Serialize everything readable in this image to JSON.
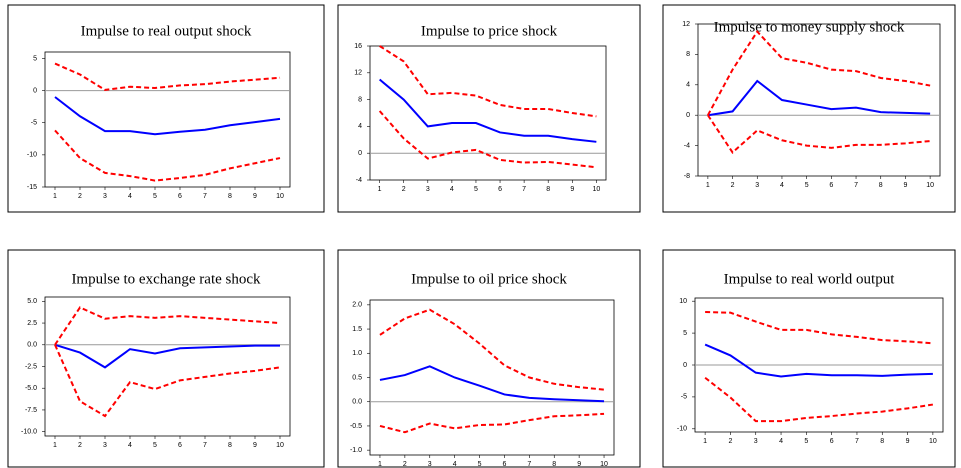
{
  "chart_data": [
    {
      "type": "line",
      "title": "Impulse to real output shock",
      "categories": [
        "1",
        "2",
        "3",
        "4",
        "5",
        "6",
        "7",
        "8",
        "9",
        "10"
      ],
      "ylim": [
        -15,
        6
      ],
      "yticks": [
        -15,
        -10,
        -5,
        0,
        5
      ],
      "series": [
        {
          "color": "#0000ff",
          "dash": false,
          "values": [
            -1,
            -4,
            -6.3,
            -6.3,
            -6.8,
            -6.4,
            -6.1,
            -5.4,
            -4.9,
            -4.4
          ]
        },
        {
          "color": "#ff0000",
          "dash": true,
          "values": [
            4.2,
            2.5,
            0.1,
            0.6,
            0.4,
            0.8,
            1.0,
            1.4,
            1.7,
            2.0
          ]
        },
        {
          "color": "#ff0000",
          "dash": true,
          "values": [
            -6.2,
            -10.5,
            -12.8,
            -13.3,
            -14,
            -13.6,
            -13.1,
            -12.1,
            -11.3,
            -10.5
          ]
        }
      ]
    },
    {
      "type": "line",
      "title": "Impulse to price shock",
      "categories": [
        "1",
        "2",
        "3",
        "4",
        "5",
        "6",
        "7",
        "8",
        "9",
        "10"
      ],
      "ylim": [
        -4,
        16
      ],
      "yticks": [
        -4,
        0,
        4,
        8,
        12,
        16
      ],
      "series": [
        {
          "color": "#0000ff",
          "dash": false,
          "values": [
            11,
            8,
            4,
            4.5,
            4.5,
            3.1,
            2.6,
            2.6,
            2.1,
            1.7
          ]
        },
        {
          "color": "#ff0000",
          "dash": true,
          "values": [
            16,
            13.7,
            8.8,
            9,
            8.6,
            7.2,
            6.6,
            6.6,
            6,
            5.5
          ]
        },
        {
          "color": "#ff0000",
          "dash": true,
          "values": [
            6.3,
            2.2,
            -0.8,
            0.1,
            0.5,
            -1,
            -1.4,
            -1.3,
            -1.7,
            -2.1
          ]
        }
      ]
    },
    {
      "type": "line",
      "title": "Impulse to money supply shock",
      "categories": [
        "1",
        "2",
        "3",
        "4",
        "5",
        "6",
        "7",
        "8",
        "9",
        "10"
      ],
      "ylim": [
        -8,
        12
      ],
      "yticks": [
        -8,
        -4,
        0,
        4,
        8,
        12
      ],
      "series": [
        {
          "color": "#0000ff",
          "dash": false,
          "values": [
            0,
            0.5,
            4.5,
            2,
            1.4,
            0.8,
            1,
            0.4,
            0.3,
            0.2
          ]
        },
        {
          "color": "#ff0000",
          "dash": true,
          "values": [
            0,
            6,
            11,
            7.5,
            6.9,
            6,
            5.8,
            4.9,
            4.5,
            3.9
          ]
        },
        {
          "color": "#ff0000",
          "dash": true,
          "values": [
            0,
            -4.9,
            -2,
            -3.3,
            -4,
            -4.3,
            -3.9,
            -3.9,
            -3.7,
            -3.4
          ]
        }
      ]
    },
    {
      "type": "line",
      "title": "Impulse to exchange rate shock",
      "categories": [
        "1",
        "2",
        "3",
        "4",
        "5",
        "6",
        "7",
        "8",
        "9",
        "10"
      ],
      "ylim": [
        -10.5,
        5.5
      ],
      "yticks": [
        {
          "value": -10,
          "label": "-10.0"
        },
        -7.5,
        {
          "value": -5,
          "label": "-5.0"
        },
        -2.5,
        {
          "value": 0,
          "label": "0.0"
        },
        2.5,
        {
          "value": 5,
          "label": "5.0"
        }
      ],
      "series": [
        {
          "color": "#0000ff",
          "dash": false,
          "values": [
            0,
            -0.9,
            -2.6,
            -0.5,
            -1,
            -0.4,
            -0.3,
            -0.2,
            -0.1,
            -0.1
          ]
        },
        {
          "color": "#ff0000",
          "dash": true,
          "values": [
            0,
            4.3,
            3,
            3.3,
            3.1,
            3.3,
            3.1,
            2.9,
            2.7,
            2.5
          ]
        },
        {
          "color": "#ff0000",
          "dash": true,
          "values": [
            0,
            -6.5,
            -8.2,
            -4.3,
            -5.1,
            -4.1,
            -3.7,
            -3.3,
            -3,
            -2.6
          ]
        }
      ]
    },
    {
      "type": "line",
      "title": "Impulse to oil price shock",
      "categories": [
        "1",
        "2",
        "3",
        "4",
        "5",
        "6",
        "7",
        "8",
        "9",
        "10"
      ],
      "ylim": [
        -1.1,
        2.1
      ],
      "yticks": [
        {
          "value": -1,
          "label": "-1.0"
        },
        -0.5,
        {
          "value": 0,
          "label": "0.0"
        },
        0.5,
        {
          "value": 1,
          "label": "1.0"
        },
        1.5,
        {
          "value": 2,
          "label": "2.0"
        }
      ],
      "series": [
        {
          "color": "#0000ff",
          "dash": false,
          "values": [
            0.45,
            0.55,
            0.73,
            0.5,
            0.33,
            0.15,
            0.08,
            0.05,
            0.03,
            0.01
          ]
        },
        {
          "color": "#ff0000",
          "dash": true,
          "values": [
            1.38,
            1.72,
            1.9,
            1.6,
            1.2,
            0.75,
            0.5,
            0.37,
            0.3,
            0.25
          ]
        },
        {
          "color": "#ff0000",
          "dash": true,
          "values": [
            -0.5,
            -0.63,
            -0.45,
            -0.55,
            -0.48,
            -0.47,
            -0.38,
            -0.3,
            -0.28,
            -0.25
          ]
        }
      ]
    },
    {
      "type": "line",
      "title": "Impulse to real world output",
      "categories": [
        "1",
        "2",
        "3",
        "4",
        "5",
        "6",
        "7",
        "8",
        "9",
        "10"
      ],
      "ylim": [
        -10.5,
        10.5
      ],
      "yticks": [
        -10,
        -5,
        0,
        5,
        10
      ],
      "series": [
        {
          "color": "#0000ff",
          "dash": false,
          "values": [
            3.2,
            1.5,
            -1.2,
            -1.8,
            -1.4,
            -1.6,
            -1.6,
            -1.7,
            -1.5,
            -1.4
          ]
        },
        {
          "color": "#ff0000",
          "dash": true,
          "values": [
            8.3,
            8.2,
            6.8,
            5.5,
            5.5,
            4.8,
            4.4,
            3.9,
            3.7,
            3.4
          ]
        },
        {
          "color": "#ff0000",
          "dash": true,
          "values": [
            -2,
            -5.1,
            -8.8,
            -8.8,
            -8.3,
            -8,
            -7.6,
            -7.3,
            -6.8,
            -6.2
          ]
        }
      ]
    }
  ]
}
